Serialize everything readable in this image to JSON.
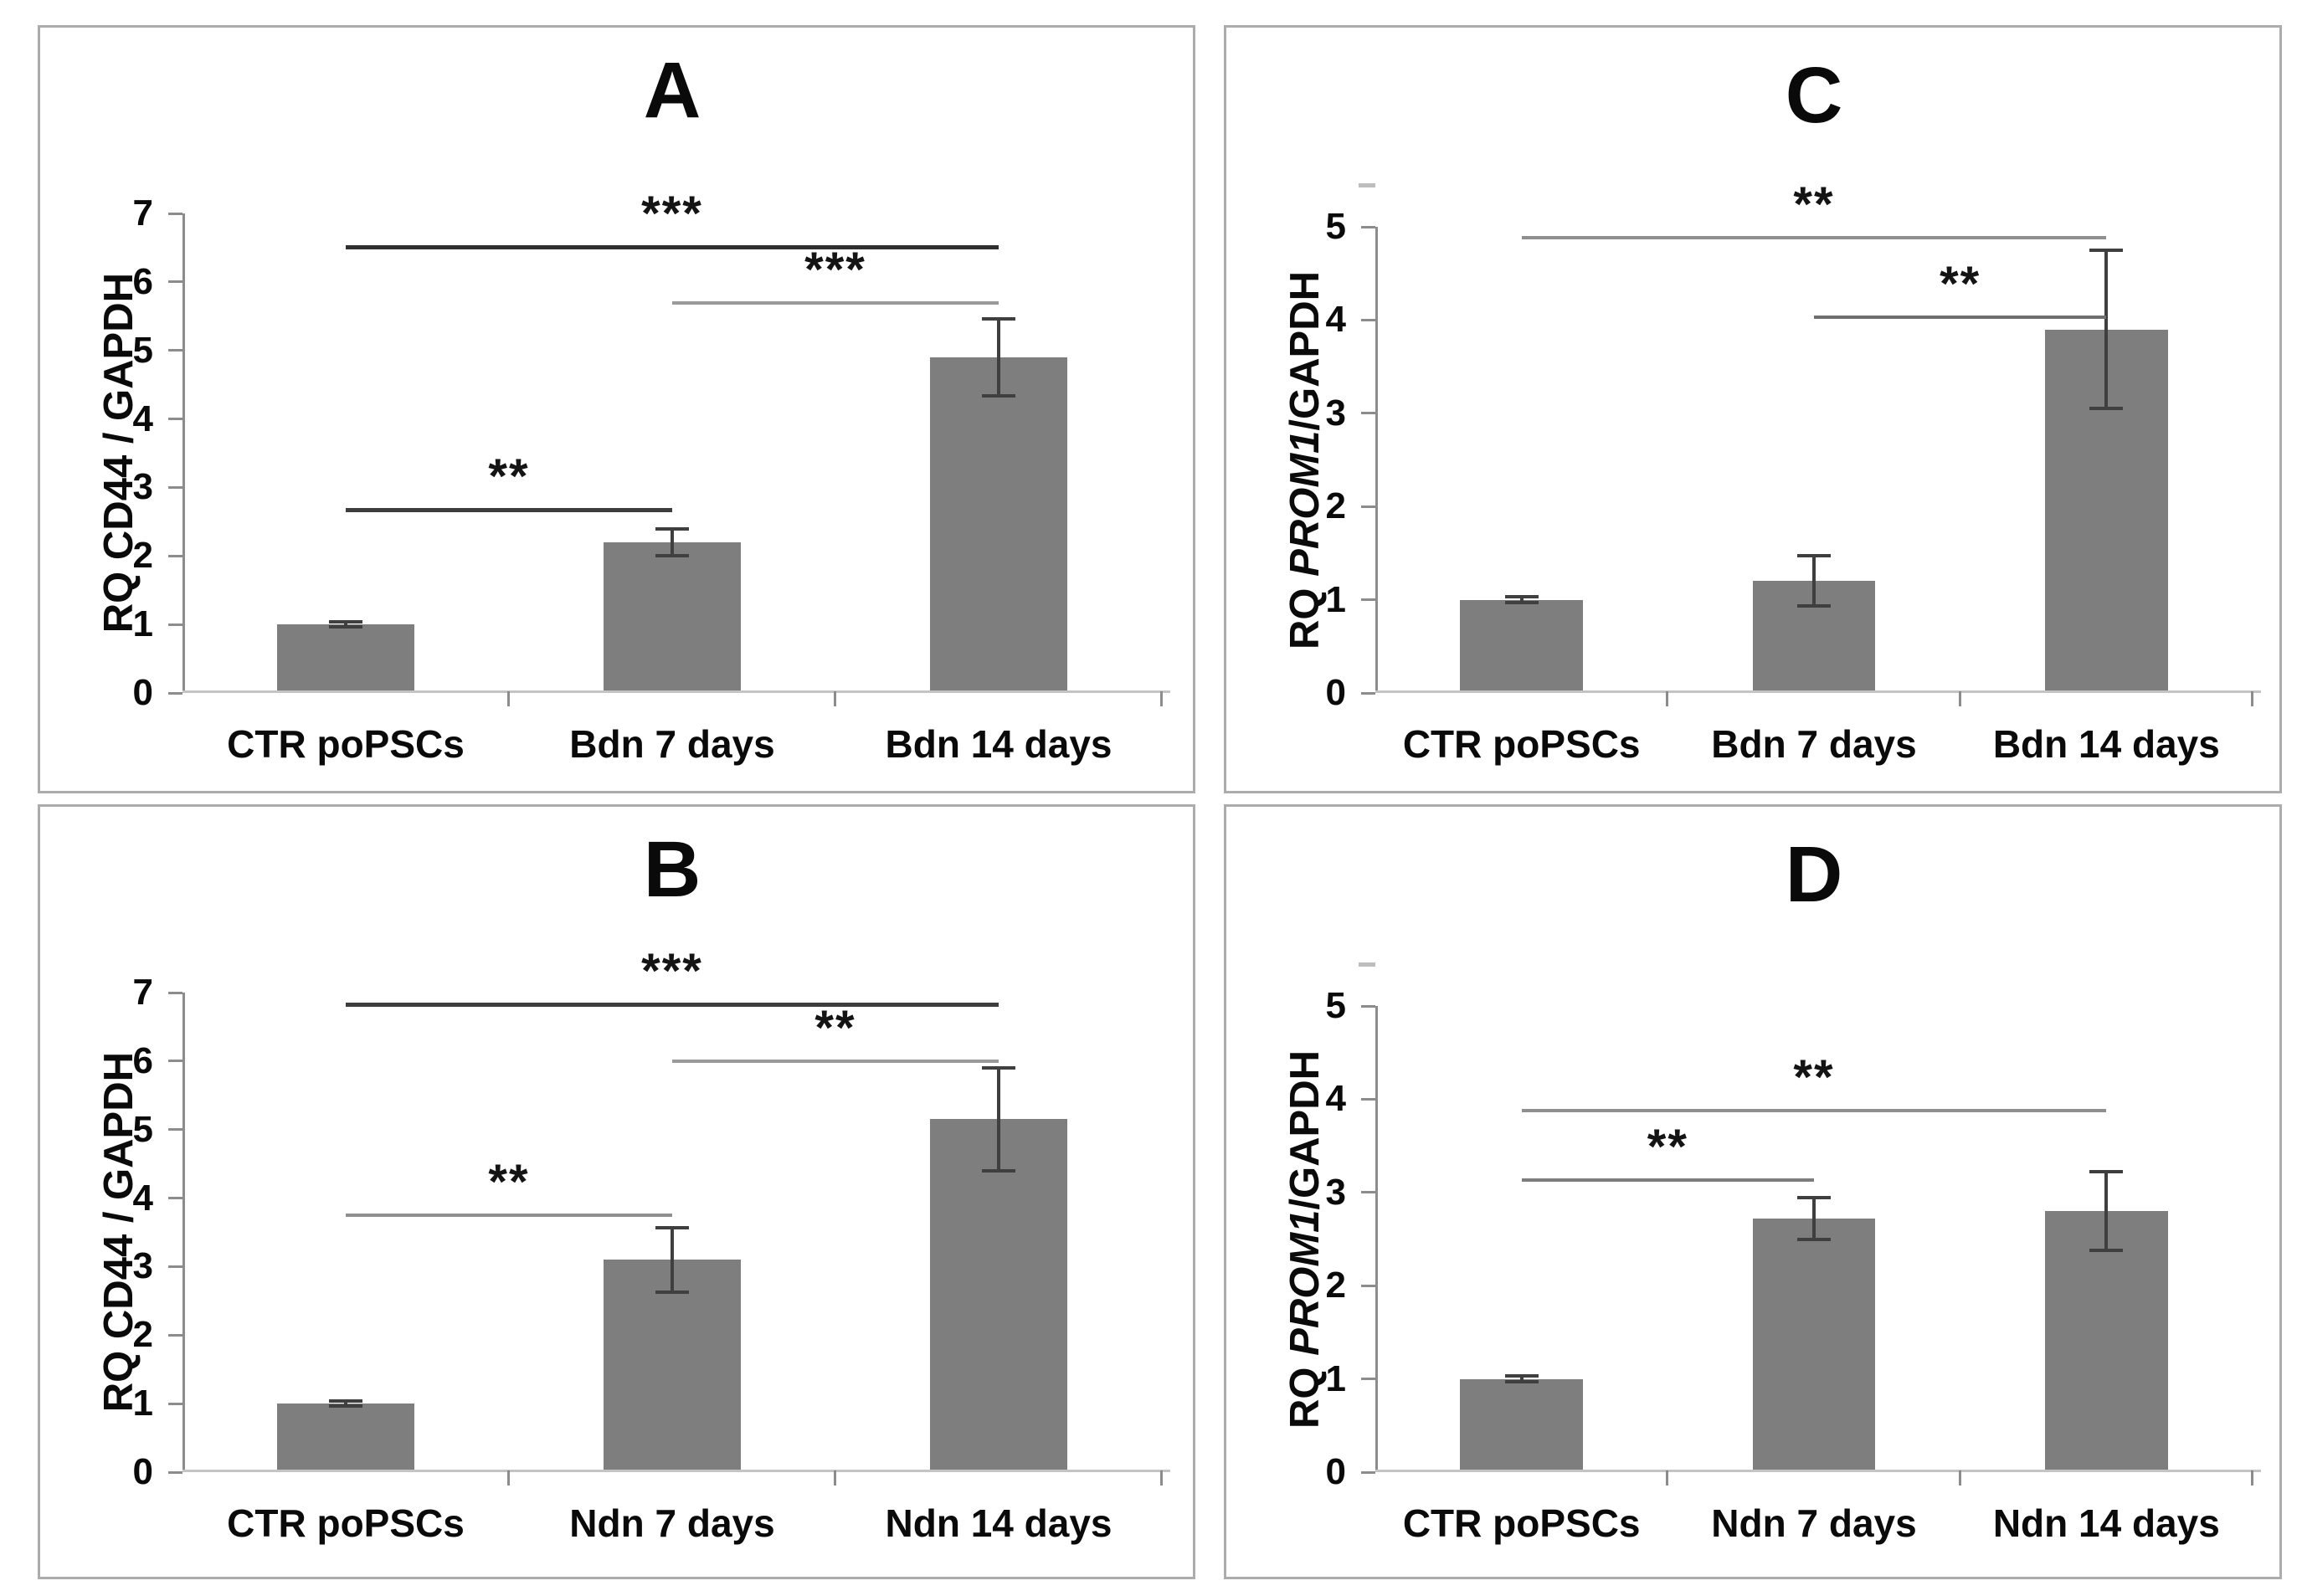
{
  "palette": {
    "bar_color": "#7e7e7e",
    "error_color": "#3f3f3f",
    "axis_color": "#8c8c8c",
    "baseline_color": "#c4c4c4",
    "panel_border": "#acacac",
    "artifact_color": "#bdbdbd",
    "text_color": "#0a0a0a"
  },
  "chart_data": [
    {
      "id": "A",
      "type": "bar",
      "title": "A",
      "panel_position": "top-left",
      "ylabel": {
        "prefix": "RQ ",
        "gene": "CD44",
        "italic": false,
        "suffix": " / GAPDH"
      },
      "ylim": [
        0,
        7
      ],
      "yticks": [
        0,
        1,
        2,
        3,
        4,
        5,
        6,
        7
      ],
      "grid": false,
      "legend": null,
      "categories": [
        "CTR poPSCs",
        "Bdn 7 days",
        "Bdn 14 days"
      ],
      "values": [
        1.0,
        2.2,
        4.9
      ],
      "errors": [
        0.04,
        0.2,
        0.56
      ],
      "significance": [
        {
          "between": [
            0,
            1
          ],
          "label": "**",
          "y": 2.7,
          "color": "#3d3d3d",
          "lw": 5
        },
        {
          "between": [
            1,
            2
          ],
          "label": "***",
          "y": 5.72,
          "color": "#9a9a9a",
          "lw": 4
        },
        {
          "between": [
            0,
            2
          ],
          "label": "***",
          "y": 6.53,
          "color": "#2f2f2f",
          "lw": 5
        }
      ],
      "top_artifact": false
    },
    {
      "id": "C",
      "type": "bar",
      "title": "C",
      "panel_position": "top-right",
      "ylabel": {
        "prefix": "RQ ",
        "gene": "PROM1",
        "italic": true,
        "suffix": "/GAPDH"
      },
      "ylim": [
        0,
        5
      ],
      "yticks": [
        0,
        1,
        2,
        3,
        4,
        5
      ],
      "grid": false,
      "legend": null,
      "categories": [
        "CTR poPSCs",
        "Bdn 7 days",
        "Bdn 14 days"
      ],
      "values": [
        1.0,
        1.2,
        3.9
      ],
      "errors": [
        0.03,
        0.27,
        0.85
      ],
      "significance": [
        {
          "between": [
            1,
            2
          ],
          "label": "**",
          "y": 4.05,
          "color": "#6e6e6e",
          "lw": 4
        },
        {
          "between": [
            0,
            2
          ],
          "label": "**",
          "y": 4.9,
          "color": "#8f8f8f",
          "lw": 4
        }
      ],
      "top_artifact": true
    },
    {
      "id": "B",
      "type": "bar",
      "title": "B",
      "panel_position": "bottom-left",
      "ylabel": {
        "prefix": "RQ ",
        "gene": "CD44",
        "italic": false,
        "suffix": " / GAPDH"
      },
      "ylim": [
        0,
        7
      ],
      "yticks": [
        0,
        1,
        2,
        3,
        4,
        5,
        6,
        7
      ],
      "grid": false,
      "legend": null,
      "categories": [
        "CTR poPSCs",
        "Ndn 7 days",
        "Ndn 14 days"
      ],
      "values": [
        1.0,
        3.1,
        5.15
      ],
      "errors": [
        0.04,
        0.47,
        0.75
      ],
      "significance": [
        {
          "between": [
            0,
            1
          ],
          "label": "**",
          "y": 3.78,
          "color": "#8f8f8f",
          "lw": 4
        },
        {
          "between": [
            1,
            2
          ],
          "label": "**",
          "y": 6.02,
          "color": "#9a9a9a",
          "lw": 4
        },
        {
          "between": [
            0,
            2
          ],
          "label": "***",
          "y": 6.85,
          "color": "#3d3d3d",
          "lw": 5
        }
      ],
      "top_artifact": false
    },
    {
      "id": "D",
      "type": "bar",
      "title": "D",
      "panel_position": "bottom-right",
      "ylabel": {
        "prefix": "RQ ",
        "gene": "PROM1",
        "italic": true,
        "suffix": "/GAPDH"
      },
      "ylim": [
        0,
        5
      ],
      "yticks": [
        0,
        1,
        2,
        3,
        4,
        5
      ],
      "grid": false,
      "legend": null,
      "categories": [
        "CTR poPSCs",
        "Ndn 7 days",
        "Ndn 14 days"
      ],
      "values": [
        1.0,
        2.72,
        2.8
      ],
      "errors": [
        0.03,
        0.22,
        0.42
      ],
      "significance": [
        {
          "between": [
            0,
            1
          ],
          "label": "**",
          "y": 3.15,
          "color": "#7d7d7d",
          "lw": 4
        },
        {
          "between": [
            0,
            2
          ],
          "label": "**",
          "y": 3.9,
          "color": "#8f8f8f",
          "lw": 4
        }
      ],
      "top_artifact": true
    }
  ]
}
